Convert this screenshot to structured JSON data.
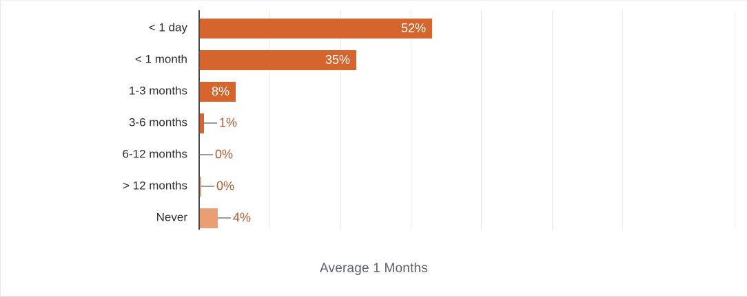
{
  "chart_data": {
    "type": "bar",
    "orientation": "horizontal",
    "title": "",
    "caption": "Average 1 Months",
    "categories": [
      "< 1 day",
      "< 1 month",
      "1-3 months",
      "3-6 months",
      "6-12 months",
      "> 12 months",
      "Never"
    ],
    "values": [
      52,
      35,
      8,
      1,
      0,
      0,
      4
    ],
    "value_labels": [
      "52%",
      "35%",
      "8%",
      "1%",
      "0%",
      "0%",
      "4%"
    ],
    "bars": [
      {
        "category": "< 1 day",
        "value": 52,
        "label": "52%",
        "shade": "dark",
        "label_inside": true,
        "trace": false
      },
      {
        "category": "< 1 month",
        "value": 35,
        "label": "35%",
        "shade": "dark",
        "label_inside": true,
        "trace": false
      },
      {
        "category": "1-3 months",
        "value": 8,
        "label": "8%",
        "shade": "dark",
        "label_inside": true,
        "trace": false
      },
      {
        "category": "3-6 months",
        "value": 1,
        "label": "1%",
        "shade": "dark",
        "label_inside": false,
        "trace": false
      },
      {
        "category": "6-12 months",
        "value": 0,
        "label": "0%",
        "shade": "dark",
        "label_inside": false,
        "trace": false
      },
      {
        "category": "> 12 months",
        "value": 0,
        "label": "0%",
        "shade": "light",
        "label_inside": false,
        "trace": true
      },
      {
        "category": "Never",
        "value": 4,
        "label": "4%",
        "shade": "light",
        "label_inside": false,
        "trace": false
      }
    ],
    "xlim": [
      0,
      120
    ],
    "grid": true,
    "legend": "none",
    "colors": {
      "bar_dark": "#d5652d",
      "bar_light": "#e99e73",
      "label_inside": "#ffffff",
      "label_outside": "#aa5a2f",
      "connector": "#9b9b9b",
      "axis": "#4a4a4a",
      "gridline": "#e9e9e9",
      "category_text": "#2e2e31",
      "caption_text": "#5b616b"
    }
  }
}
